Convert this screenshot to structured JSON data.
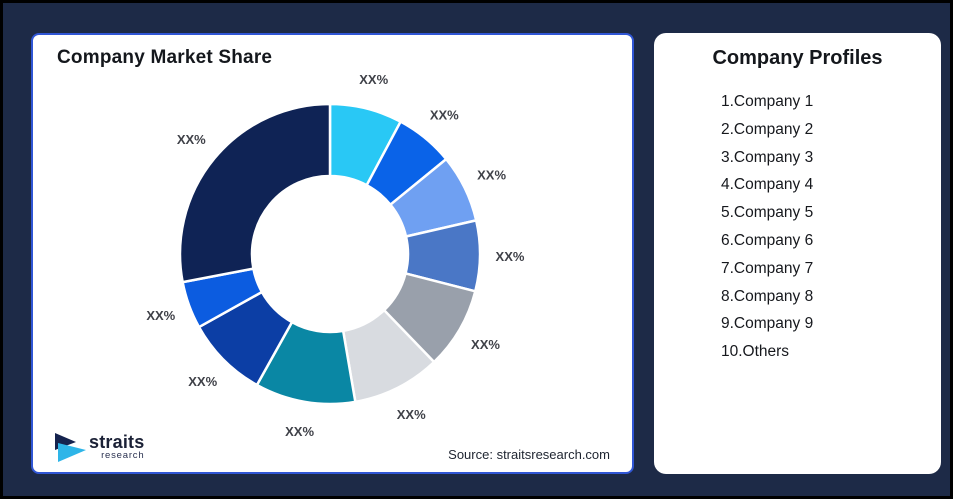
{
  "page": {
    "background_color": "#1D2A47",
    "outer_border_color": "#000000"
  },
  "chart_panel": {
    "title": "Company Market Share",
    "source": "Source: straitsresearch.com",
    "border_color": "#3056D5",
    "logo": {
      "name": "straits",
      "subname": "research",
      "mark_navy": "#15234E",
      "mark_cyan": "#2EB5E8"
    }
  },
  "chart_data": {
    "type": "pie",
    "variant": "donut",
    "title": "Company Market Share",
    "start_angle_deg": 0,
    "clockwise": true,
    "inner_radius_ratio": 0.52,
    "label_color": "#3F4148",
    "separator_color": "#FFFFFF",
    "slices": [
      {
        "company": "Company 1",
        "label": "XX%",
        "value_pct": 7.8,
        "color": "#29C8F5"
      },
      {
        "company": "Company 2",
        "label": "XX%",
        "value_pct": 6.3,
        "color": "#0A63E8"
      },
      {
        "company": "Company 3",
        "label": "XX%",
        "value_pct": 7.3,
        "color": "#6FA0F2"
      },
      {
        "company": "Company 4",
        "label": "XX%",
        "value_pct": 7.6,
        "color": "#4A77C6"
      },
      {
        "company": "Company 5",
        "label": "XX%",
        "value_pct": 8.8,
        "color": "#99A0AB"
      },
      {
        "company": "Company 6",
        "label": "XX%",
        "value_pct": 9.5,
        "color": "#D8DBE0"
      },
      {
        "company": "Company 7",
        "label": "XX%",
        "value_pct": 10.8,
        "color": "#0A87A4"
      },
      {
        "company": "Company 8",
        "label": "XX%",
        "value_pct": 8.8,
        "color": "#0C3EA5"
      },
      {
        "company": "Company 9",
        "label": "XX%",
        "value_pct": 5.1,
        "color": "#0C5CE0"
      },
      {
        "company": "Others",
        "label": "XX%",
        "value_pct": 28.0,
        "color": "#0F2355"
      }
    ]
  },
  "profiles_panel": {
    "title": "Company Profiles",
    "items": [
      "1.Company 1",
      "2.Company 2",
      "3.Company 3",
      "4.Company 4",
      "5.Company 5",
      "6.Company 6",
      "7.Company 7",
      "8.Company 8",
      "9.Company 9",
      "10.Others"
    ]
  }
}
